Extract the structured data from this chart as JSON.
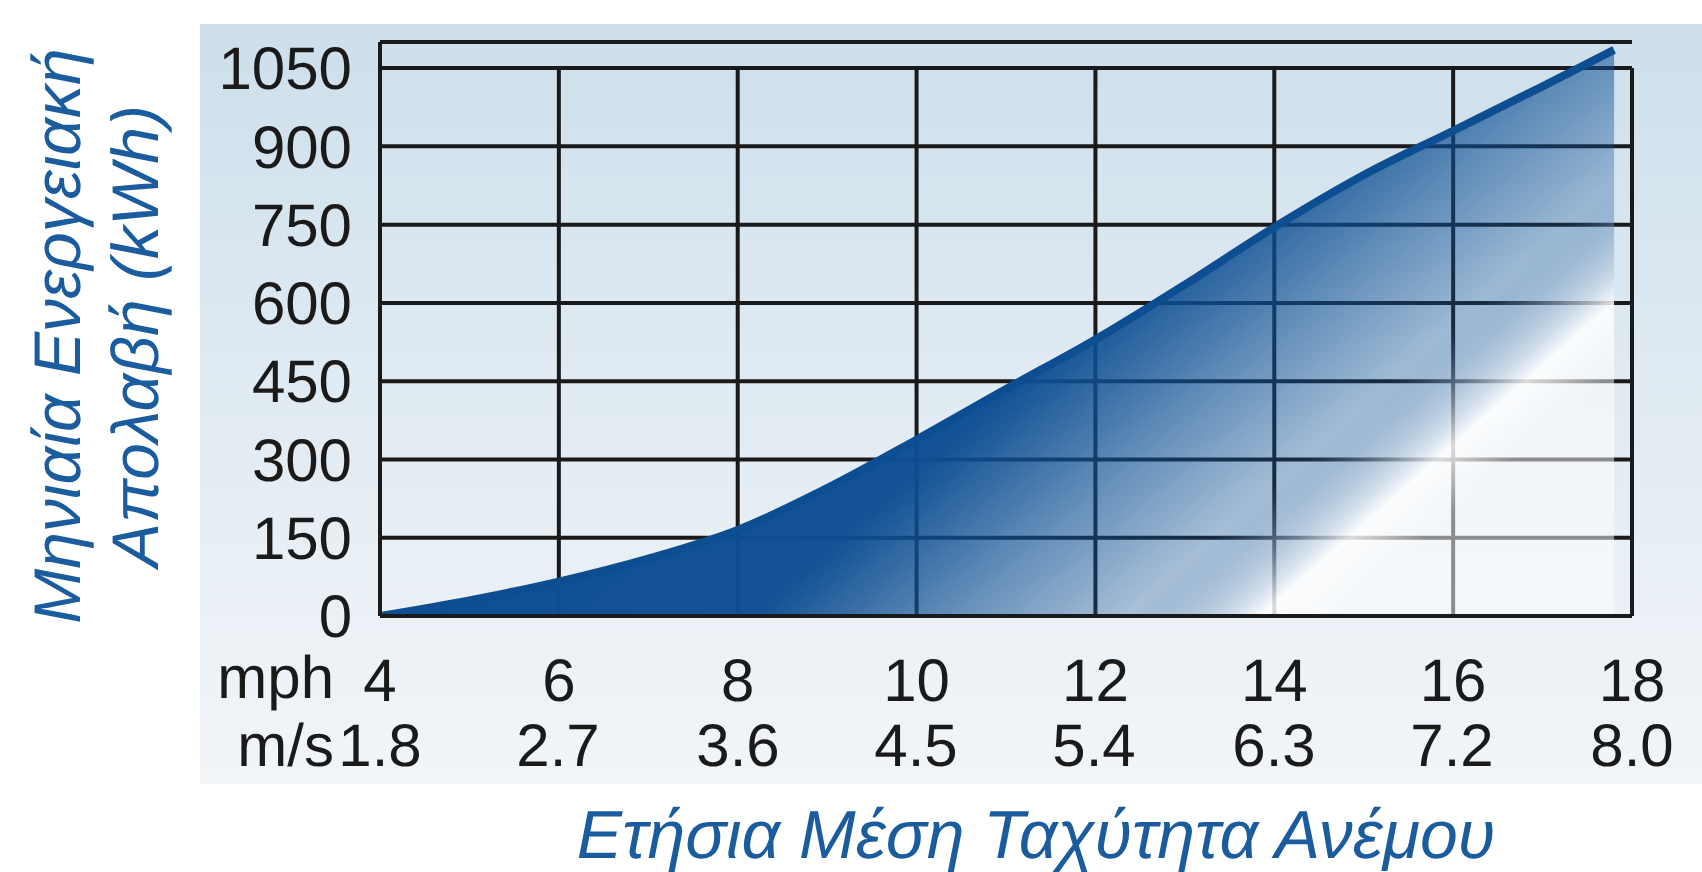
{
  "chart_data": {
    "type": "area",
    "xlabel": "Ετήσια Μέση Ταχύτητα Ανέμου",
    "ylabel": "Μηνιαία Ενεργειακή Απολαβή (kWh)",
    "x": [
      4,
      5,
      6,
      7,
      8,
      9,
      10,
      11,
      12,
      13,
      14,
      15,
      16,
      17,
      17.8
    ],
    "series": [
      {
        "color": "#0d4e92",
        "values": [
          0,
          30,
          66,
          110,
          165,
          245,
          338,
          435,
          530,
          635,
          745,
          845,
          930,
          1015,
          1085
        ]
      }
    ],
    "xlim": [
      4,
      18
    ],
    "xticks": [
      4,
      6,
      8,
      10,
      12,
      14,
      16,
      18
    ],
    "x2lim": [
      1.79,
      8.05
    ],
    "x2ticks": [
      {
        "value": 1.79,
        "label": "1.8"
      },
      {
        "value": 2.68,
        "label": "2.7"
      },
      {
        "value": 3.58,
        "label": "3.6"
      },
      {
        "value": 4.47,
        "label": "4.5"
      },
      {
        "value": 5.36,
        "label": "5.4"
      },
      {
        "value": 6.26,
        "label": "6.3"
      },
      {
        "value": 7.15,
        "label": "7.2"
      },
      {
        "value": 8.05,
        "label": "8.0"
      }
    ],
    "ylim": [
      0,
      1100
    ],
    "yticks": [
      0,
      150,
      300,
      450,
      600,
      750,
      900,
      1050
    ],
    "grid": true,
    "annotations": [
      "mph",
      "m/s"
    ]
  }
}
